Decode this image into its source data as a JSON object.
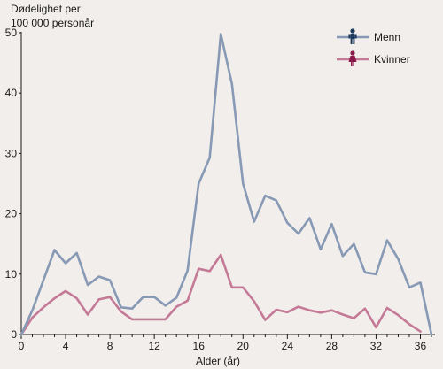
{
  "chart_data": {
    "type": "line",
    "ylabel_lines": [
      "Dødelighet per",
      "100 000 personår"
    ],
    "xlabel": "Alder (år)",
    "xlim": [
      0,
      37
    ],
    "ylim": [
      0,
      50
    ],
    "x_ticks": [
      0,
      4,
      8,
      12,
      16,
      20,
      24,
      28,
      32,
      36
    ],
    "y_ticks": [
      0,
      10,
      20,
      30,
      40,
      50
    ],
    "grid": false,
    "legend_position": "top-right",
    "series": [
      {
        "name": "Menn",
        "color": "#8799b4",
        "icon": "man-icon",
        "x": [
          0,
          1,
          2,
          3,
          4,
          5,
          6,
          7,
          8,
          9,
          10,
          11,
          12,
          13,
          14,
          15,
          16,
          17,
          18,
          19,
          20,
          21,
          22,
          23,
          24,
          25,
          26,
          27,
          28,
          29,
          30,
          31,
          32,
          33,
          34,
          35,
          36,
          37
        ],
        "y": [
          0,
          4,
          9,
          14,
          11.8,
          13.5,
          8.2,
          9.6,
          9,
          4.5,
          4.3,
          6.2,
          6.2,
          4.8,
          6.1,
          10.6,
          25,
          29.3,
          49.8,
          41.5,
          25,
          18.7,
          23,
          22.2,
          18.5,
          16.7,
          19.3,
          14.1,
          18.3,
          13,
          15,
          10.3,
          10,
          15.6,
          12.5,
          7.8,
          8.6,
          0
        ]
      },
      {
        "name": "Kvinner",
        "color": "#c47a96",
        "icon": "woman-icon",
        "x": [
          0,
          1,
          2,
          3,
          4,
          5,
          6,
          7,
          8,
          9,
          10,
          11,
          12,
          13,
          14,
          15,
          16,
          17,
          18,
          19,
          20,
          21,
          22,
          23,
          24,
          25,
          26,
          27,
          28,
          29,
          30,
          31,
          32,
          33,
          34,
          35,
          36
        ],
        "y": [
          0,
          2.8,
          4.5,
          6,
          7.2,
          6,
          3.3,
          5.8,
          6.2,
          3.8,
          2.5,
          2.5,
          2.5,
          2.5,
          4.6,
          5.6,
          10.9,
          10.5,
          13.2,
          7.8,
          7.8,
          5.5,
          2.4,
          4.1,
          3.7,
          4.6,
          4,
          3.6,
          4,
          3.3,
          2.7,
          4.3,
          1.2,
          4.4,
          3.2,
          1.7,
          0.5
        ]
      }
    ]
  }
}
